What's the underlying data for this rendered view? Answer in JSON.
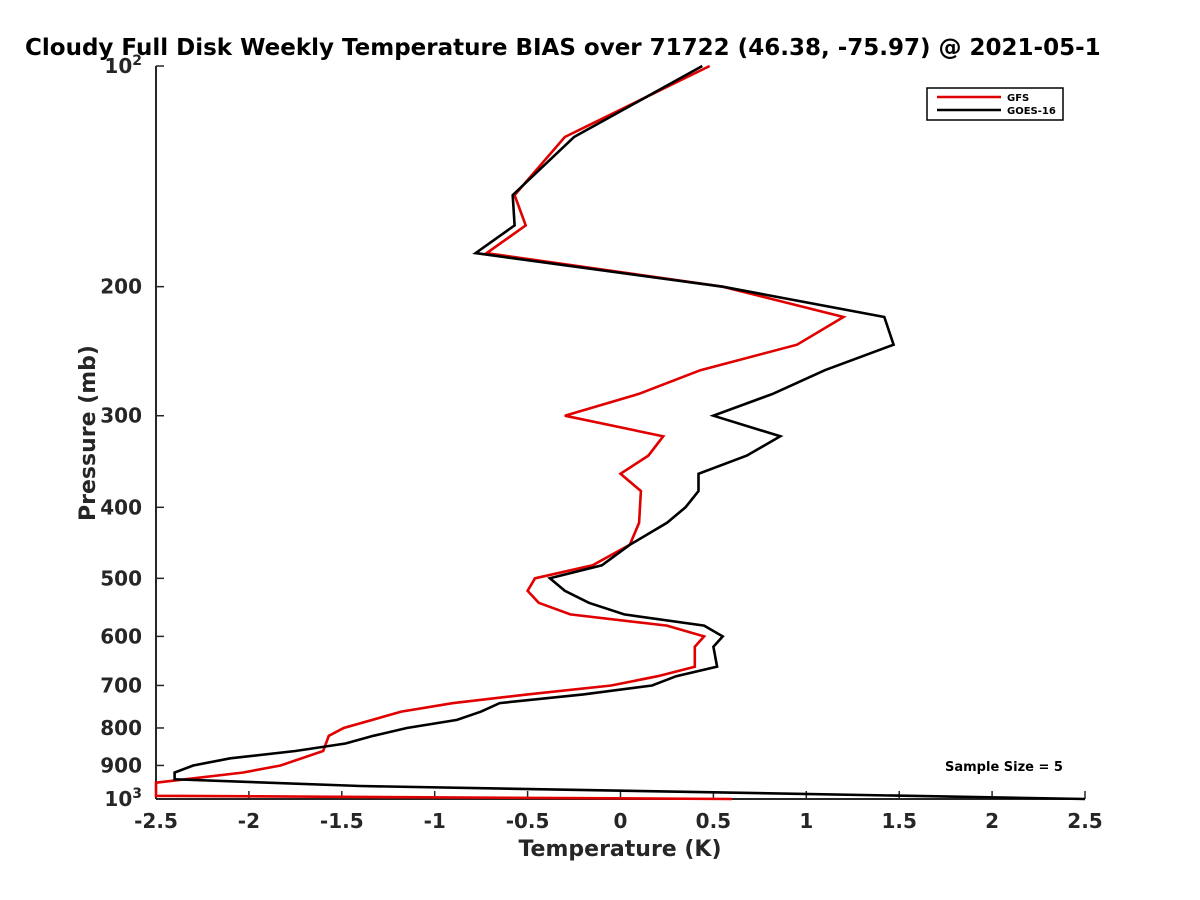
{
  "chart_data": {
    "type": "line",
    "title": "Cloudy Full Disk Weekly Temperature BIAS over 71722 (46.38, -75.97) @ 2021-05-1",
    "xlabel": "Temperature (K)",
    "ylabel": "Pressure (mb)",
    "xlim": [
      -2.5,
      2.5
    ],
    "ylim": [
      100,
      1000
    ],
    "y_scale": "log",
    "y_reversed": true,
    "x_ticks": [
      "-2.5",
      "-2",
      "-1.5",
      "-1",
      "-0.5",
      "0",
      "0.5",
      "1",
      "1.5",
      "2",
      "2.5"
    ],
    "y_ticks": [
      {
        "value": 100,
        "base": "10",
        "exp": "2"
      },
      {
        "value": 200,
        "label": "200"
      },
      {
        "value": 300,
        "label": "300"
      },
      {
        "value": 400,
        "label": "400"
      },
      {
        "value": 500,
        "label": "500"
      },
      {
        "value": 600,
        "label": "600"
      },
      {
        "value": 700,
        "label": "700"
      },
      {
        "value": 800,
        "label": "800"
      },
      {
        "value": 900,
        "label": "900"
      },
      {
        "value": 1000,
        "base": "10",
        "exp": "3"
      }
    ],
    "legend_position": "top-right",
    "series": [
      {
        "name": "GFS",
        "color": "#e00000",
        "points": [
          [
            0.48,
            100
          ],
          [
            -0.3,
            125
          ],
          [
            -0.57,
            150
          ],
          [
            -0.51,
            165
          ],
          [
            -0.72,
            180
          ],
          [
            0.55,
            200
          ],
          [
            1.2,
            220
          ],
          [
            0.95,
            240
          ],
          [
            0.43,
            260
          ],
          [
            0.1,
            280
          ],
          [
            -0.3,
            300
          ],
          [
            0.23,
            320
          ],
          [
            0.15,
            340
          ],
          [
            0.0,
            360
          ],
          [
            0.11,
            380
          ],
          [
            0.1,
            420
          ],
          [
            0.05,
            450
          ],
          [
            -0.15,
            480
          ],
          [
            -0.46,
            500
          ],
          [
            -0.5,
            520
          ],
          [
            -0.44,
            540
          ],
          [
            -0.27,
            560
          ],
          [
            0.25,
            580
          ],
          [
            0.45,
            600
          ],
          [
            0.4,
            620
          ],
          [
            0.4,
            660
          ],
          [
            0.2,
            680
          ],
          [
            -0.05,
            700
          ],
          [
            -0.5,
            720
          ],
          [
            -0.9,
            740
          ],
          [
            -1.18,
            760
          ],
          [
            -1.49,
            800
          ],
          [
            -1.57,
            820
          ],
          [
            -1.6,
            860
          ],
          [
            -1.83,
            900
          ],
          [
            -2.03,
            920
          ],
          [
            -2.5,
            950
          ],
          [
            -2.5,
            990
          ],
          [
            0.6,
            1000
          ]
        ]
      },
      {
        "name": "GOES-16",
        "color": "#000000",
        "points": [
          [
            0.44,
            100
          ],
          [
            -0.25,
            125
          ],
          [
            -0.58,
            150
          ],
          [
            -0.57,
            165
          ],
          [
            -0.78,
            180
          ],
          [
            0.55,
            200
          ],
          [
            1.42,
            220
          ],
          [
            1.47,
            240
          ],
          [
            1.1,
            260
          ],
          [
            0.82,
            280
          ],
          [
            0.5,
            300
          ],
          [
            0.86,
            320
          ],
          [
            0.68,
            340
          ],
          [
            0.42,
            360
          ],
          [
            0.42,
            380
          ],
          [
            0.35,
            400
          ],
          [
            0.25,
            420
          ],
          [
            0.05,
            450
          ],
          [
            -0.1,
            480
          ],
          [
            -0.38,
            500
          ],
          [
            -0.3,
            520
          ],
          [
            -0.17,
            540
          ],
          [
            0.02,
            560
          ],
          [
            0.45,
            580
          ],
          [
            0.55,
            600
          ],
          [
            0.5,
            620
          ],
          [
            0.52,
            660
          ],
          [
            0.3,
            680
          ],
          [
            0.17,
            700
          ],
          [
            -0.2,
            720
          ],
          [
            -0.65,
            740
          ],
          [
            -0.75,
            760
          ],
          [
            -0.88,
            780
          ],
          [
            -1.15,
            800
          ],
          [
            -1.33,
            820
          ],
          [
            -1.48,
            840
          ],
          [
            -1.75,
            860
          ],
          [
            -2.1,
            880
          ],
          [
            -2.3,
            900
          ],
          [
            -2.4,
            920
          ],
          [
            -2.4,
            940
          ],
          [
            -1.4,
            960
          ],
          [
            2.5,
            1000
          ]
        ]
      }
    ],
    "annotations": [
      {
        "text": "Sample Size = 5",
        "position": "bottom-right"
      }
    ]
  }
}
